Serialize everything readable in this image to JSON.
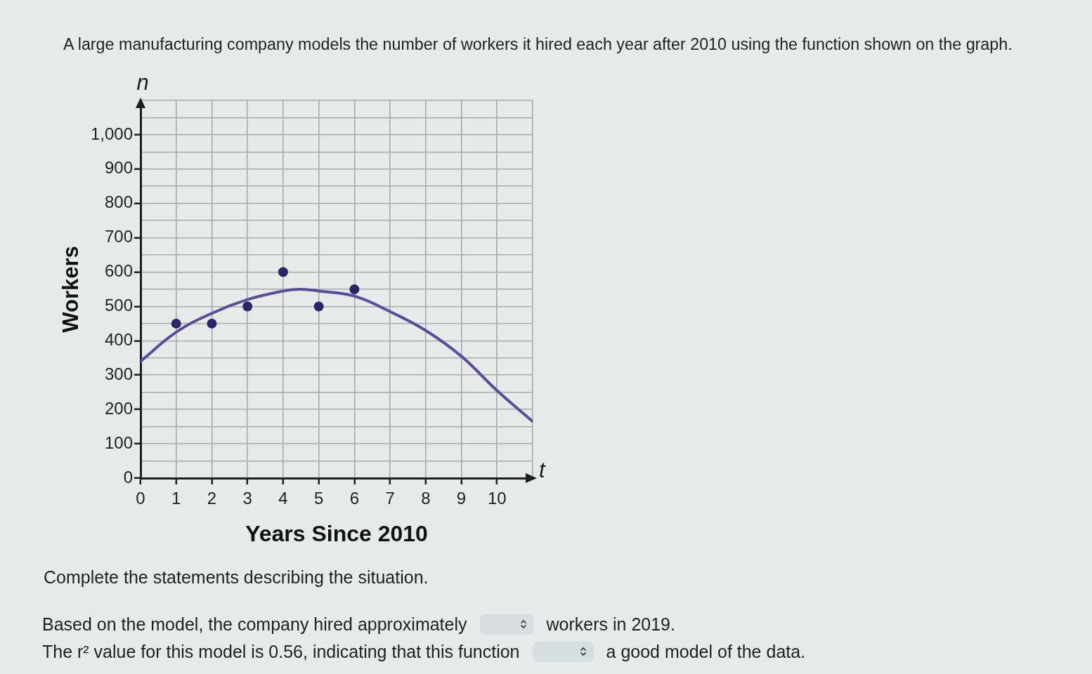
{
  "chart_data": {
    "type": "scatter",
    "title": "A large manufacturing company models the number of workers it hired each year after 2010 using the function shown on the graph.",
    "xlabel": "Years Since 2010",
    "ylabel": "Workers",
    "series": [
      {
        "color": "#2a2566",
        "marker": "circle",
        "x": [
          1,
          2,
          3,
          4,
          5,
          6
        ],
        "values": [
          450,
          450,
          500,
          600,
          500,
          550
        ]
      },
      {
        "type": "line",
        "color": "#5b4c9c",
        "x": [
          0,
          1,
          2,
          3,
          4,
          4.5,
          5,
          6,
          7,
          8,
          9,
          10,
          11
        ],
        "values": [
          340,
          425,
          480,
          520,
          545,
          550,
          545,
          530,
          485,
          430,
          355,
          255,
          165
        ]
      }
    ],
    "xlim": [
      0,
      11
    ],
    "xticks": [
      0,
      1,
      2,
      3,
      4,
      5,
      6,
      7,
      8,
      9,
      10,
      {
        "value": 11,
        "label": null
      }
    ],
    "ylim": [
      0,
      1100
    ],
    "yticks": [
      0,
      {
        "value": 50,
        "label": null
      },
      100,
      {
        "value": 150,
        "label": null
      },
      200,
      {
        "value": 250,
        "label": null
      },
      300,
      {
        "value": 350,
        "label": null
      },
      400,
      {
        "value": 450,
        "label": null
      },
      500,
      {
        "value": 550,
        "label": null
      },
      600,
      {
        "value": 650,
        "label": null
      },
      700,
      {
        "value": 750,
        "label": null
      },
      800,
      {
        "value": 850,
        "label": null
      },
      900,
      {
        "value": 950,
        "label": null
      },
      {
        "value": 1000,
        "label": "1,000"
      },
      {
        "value": 1050,
        "label": null
      },
      {
        "value": 1100,
        "label": null
      }
    ],
    "grid": true,
    "annotations": [
      "n",
      "t",
      "Complete the statements describing the situation.",
      "Based on the model, the company hired approximately",
      "workers in 2019.",
      "The r² value for this model is 0.56, indicating that this function",
      "a good model of the data."
    ]
  }
}
